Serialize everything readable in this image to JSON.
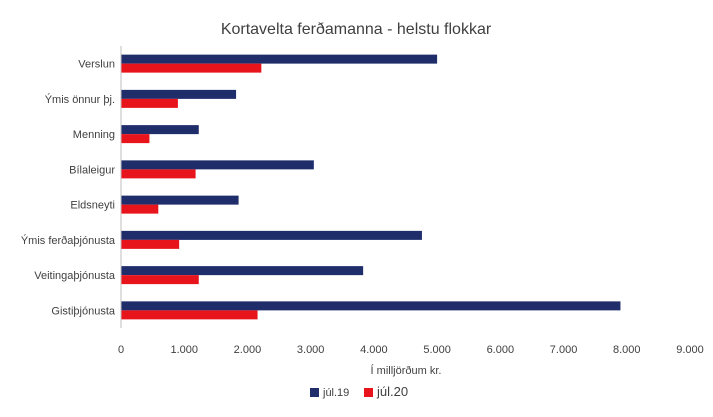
{
  "chart_data": {
    "type": "bar",
    "orientation": "horizontal",
    "title": "Kortavelta ferðamanna - helstu flokkar",
    "xlabel": "Í milljörðum kr.",
    "ylabel": "",
    "xlim": [
      0,
      9000
    ],
    "xticks": [
      0,
      1000,
      2000,
      3000,
      4000,
      5000,
      6000,
      7000,
      8000,
      9000
    ],
    "xtick_labels": [
      "0",
      "1.000",
      "2.000",
      "3.000",
      "4.000",
      "5.000",
      "6.000",
      "7.000",
      "8.000",
      "9.000"
    ],
    "categories": [
      "Verslun",
      "Ýmis önnur þj.",
      "Menning",
      "Bílaleigur",
      "Eldsneyti",
      "Ýmis ferðaþjónusta",
      "Veitingaþjónusta",
      "Gistiþjónusta"
    ],
    "series": [
      {
        "name": "júl.19",
        "color": "#1f2d6b",
        "values": [
          5000,
          1820,
          1230,
          3050,
          1860,
          4760,
          3830,
          7900
        ]
      },
      {
        "name": "júl.20",
        "color": "#e8141c",
        "values": [
          2220,
          900,
          450,
          1180,
          590,
          920,
          1230,
          2160
        ]
      }
    ],
    "grid": false,
    "legend_position": "bottom"
  }
}
